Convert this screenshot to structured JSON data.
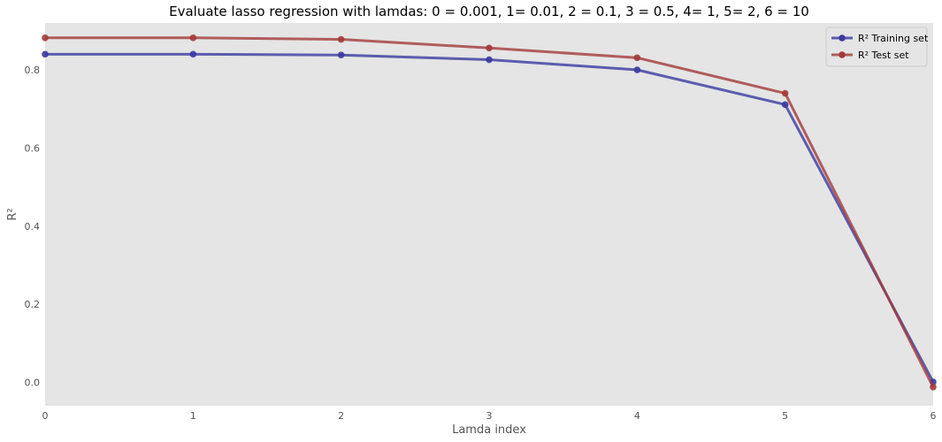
{
  "chart_data": {
    "type": "line",
    "title": "Evaluate lasso regression with lamdas: 0 = 0.001, 1= 0.01, 2 = 0.1, 3 = 0.5, 4= 1, 5= 2, 6 = 10",
    "xlabel": "Lamda index",
    "ylabel": "R²",
    "xlim": [
      0,
      6
    ],
    "ylim": [
      -0.06,
      0.92
    ],
    "xticks": [
      "0",
      "1",
      "2",
      "3",
      "4",
      "5",
      "6"
    ],
    "yticks": [
      "0.0",
      "0.2",
      "0.4",
      "0.6",
      "0.8"
    ],
    "x": [
      0,
      1,
      2,
      3,
      4,
      5,
      6
    ],
    "grid": false,
    "legend_position": "top-right",
    "background": "#e5e5e5",
    "series": [
      {
        "name": "R² Training set",
        "values": [
          0.84,
          0.84,
          0.838,
          0.826,
          0.8,
          0.711,
          0.001
        ],
        "color": "#3a3aa0"
      },
      {
        "name": "R² Test set",
        "values": [
          0.882,
          0.882,
          0.878,
          0.856,
          0.831,
          0.74,
          -0.012
        ],
        "color": "#a33a3a"
      }
    ]
  }
}
